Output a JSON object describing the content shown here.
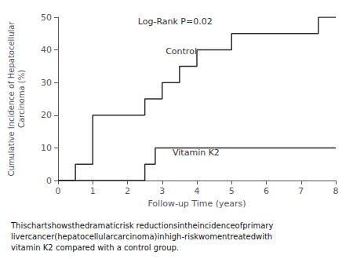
{
  "chart_data": {
    "type": "step",
    "xlabel": "Follow-up Time (years)",
    "ylabel": "Cumulative Incidence of Hepatocellular\nCarcinoma (%)",
    "xlim": [
      0,
      8
    ],
    "ylim": [
      0,
      50
    ],
    "xticks": [
      0,
      1,
      2,
      3,
      4,
      5,
      6,
      7,
      8
    ],
    "yticks": [
      0,
      10,
      20,
      30,
      40,
      50
    ],
    "grid": false,
    "series": [
      {
        "color": "#2b2b2b",
        "x": [
          0,
          0,
          0.5,
          0.5,
          1.0,
          1.0,
          2.5,
          2.5,
          3.0,
          3.0,
          3.5,
          3.5,
          4.0,
          4.0,
          5.0,
          5.0,
          6.0,
          6.0,
          7.5,
          7.5,
          8.0
        ],
        "values": [
          0,
          0,
          0,
          5,
          5,
          20,
          20,
          25,
          25,
          30,
          30,
          35,
          35,
          40,
          40,
          45,
          45,
          45,
          45,
          50,
          50
        ]
      },
      {
        "color": "#2b2b2b",
        "x": [
          0,
          2.5,
          2.5,
          2.8,
          2.8,
          8.0
        ],
        "values": [
          0,
          0,
          5,
          5,
          10,
          10
        ]
      }
    ],
    "annotations": [
      {
        "text": "Control",
        "x": 3.1,
        "y": 38
      },
      {
        "text": "Vitamin K2",
        "x": 3.3,
        "y": 7
      },
      {
        "text": "Log-Rank P=0.02",
        "x": 2.3,
        "y": 50
      }
    ],
    "caption": [
      "Thischartshowsthedramaticrisk reductionsintheincidenceofprimary",
      "livercancer(hepatocellularcarcinoma)inhigh-riskwomentreatedwith",
      "vitamin K2 compared with a control group."
    ]
  }
}
